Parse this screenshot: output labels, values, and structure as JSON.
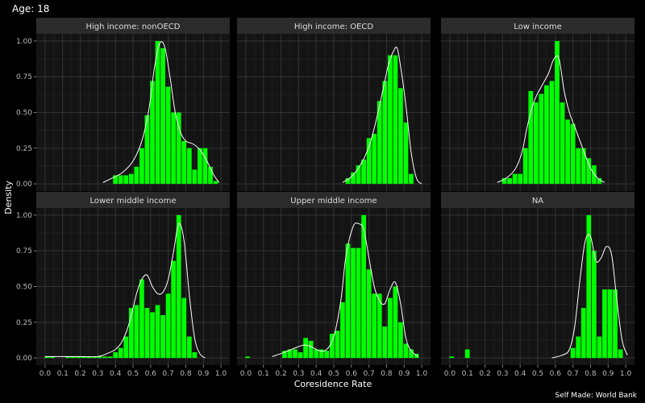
{
  "chart_data": {
    "type": "bar",
    "title": "Age: 18",
    "xlabel": "Coresidence Rate",
    "ylabel": "Density",
    "caption": "Self Made: World Bank",
    "xlim": [
      -0.05,
      1.05
    ],
    "ylim": [
      -0.05,
      1.05
    ],
    "x_ticks": [
      "0.0",
      "0.1",
      "0.2",
      "0.3",
      "0.4",
      "0.5",
      "0.6",
      "0.7",
      "0.8",
      "0.9",
      "1.0"
    ],
    "y_ticks": [
      "0.00",
      "0.25",
      "0.50",
      "0.75",
      "1.00"
    ],
    "bin_width": 0.03,
    "bar_color": "#00ff00",
    "density_color": "#ffffff",
    "panel_background": "#141414",
    "strip_background": "#2b2b2b",
    "facets": [
      {
        "label": "High income: nonOECD",
        "bars": [
          [
            0.4,
            0.06
          ],
          [
            0.43,
            0.06
          ],
          [
            0.46,
            0.06
          ],
          [
            0.49,
            0.07
          ],
          [
            0.52,
            0.12
          ],
          [
            0.55,
            0.25
          ],
          [
            0.58,
            0.48
          ],
          [
            0.61,
            0.72
          ],
          [
            0.64,
            1.0
          ],
          [
            0.67,
            0.95
          ],
          [
            0.7,
            0.68
          ],
          [
            0.73,
            0.5
          ],
          [
            0.76,
            0.5
          ],
          [
            0.79,
            0.3
          ],
          [
            0.82,
            0.25
          ],
          [
            0.85,
            0.1
          ],
          [
            0.88,
            0.25
          ],
          [
            0.91,
            0.25
          ],
          [
            0.94,
            0.12
          ],
          [
            0.97,
            0.02
          ]
        ],
        "density": [
          [
            0.33,
            0.01
          ],
          [
            0.38,
            0.04
          ],
          [
            0.44,
            0.08
          ],
          [
            0.5,
            0.16
          ],
          [
            0.55,
            0.3
          ],
          [
            0.59,
            0.52
          ],
          [
            0.62,
            0.8
          ],
          [
            0.65,
            0.98
          ],
          [
            0.68,
            0.96
          ],
          [
            0.71,
            0.75
          ],
          [
            0.74,
            0.5
          ],
          [
            0.77,
            0.36
          ],
          [
            0.8,
            0.3
          ],
          [
            0.84,
            0.28
          ],
          [
            0.88,
            0.24
          ],
          [
            0.92,
            0.16
          ],
          [
            0.96,
            0.06
          ],
          [
            0.99,
            0.01
          ]
        ]
      },
      {
        "label": "High income: OECD",
        "bars": [
          [
            0.58,
            0.04
          ],
          [
            0.61,
            0.08
          ],
          [
            0.64,
            0.13
          ],
          [
            0.67,
            0.17
          ],
          [
            0.7,
            0.32
          ],
          [
            0.73,
            0.35
          ],
          [
            0.76,
            0.58
          ],
          [
            0.79,
            0.72
          ],
          [
            0.82,
            0.9
          ],
          [
            0.85,
            0.9
          ],
          [
            0.88,
            0.67
          ],
          [
            0.91,
            0.43
          ],
          [
            0.94,
            0.07
          ]
        ],
        "density": [
          [
            0.55,
            0.01
          ],
          [
            0.6,
            0.05
          ],
          [
            0.65,
            0.13
          ],
          [
            0.7,
            0.26
          ],
          [
            0.74,
            0.44
          ],
          [
            0.78,
            0.66
          ],
          [
            0.81,
            0.83
          ],
          [
            0.84,
            0.93
          ],
          [
            0.86,
            0.95
          ],
          [
            0.88,
            0.82
          ],
          [
            0.91,
            0.55
          ],
          [
            0.94,
            0.22
          ],
          [
            0.97,
            0.04
          ],
          [
            1.0,
            0.0
          ]
        ]
      },
      {
        "label": "Low income",
        "bars": [
          [
            0.31,
            0.04
          ],
          [
            0.34,
            0.04
          ],
          [
            0.37,
            0.07
          ],
          [
            0.4,
            0.07
          ],
          [
            0.43,
            0.25
          ],
          [
            0.46,
            0.65
          ],
          [
            0.49,
            0.57
          ],
          [
            0.52,
            0.63
          ],
          [
            0.55,
            0.69
          ],
          [
            0.58,
            0.72
          ],
          [
            0.61,
            1.0
          ],
          [
            0.64,
            0.57
          ],
          [
            0.67,
            0.45
          ],
          [
            0.7,
            0.42
          ],
          [
            0.73,
            0.25
          ],
          [
            0.76,
            0.25
          ],
          [
            0.79,
            0.18
          ],
          [
            0.82,
            0.13
          ],
          [
            0.85,
            0.04
          ]
        ],
        "density": [
          [
            0.27,
            0.01
          ],
          [
            0.32,
            0.04
          ],
          [
            0.37,
            0.1
          ],
          [
            0.41,
            0.22
          ],
          [
            0.44,
            0.4
          ],
          [
            0.48,
            0.58
          ],
          [
            0.52,
            0.68
          ],
          [
            0.56,
            0.77
          ],
          [
            0.59,
            0.87
          ],
          [
            0.62,
            0.88
          ],
          [
            0.65,
            0.65
          ],
          [
            0.68,
            0.5
          ],
          [
            0.71,
            0.4
          ],
          [
            0.74,
            0.3
          ],
          [
            0.77,
            0.2
          ],
          [
            0.8,
            0.11
          ],
          [
            0.84,
            0.04
          ],
          [
            0.88,
            0.01
          ]
        ]
      },
      {
        "label": "Lower middle income",
        "bars": [
          [
            0.01,
            0.01
          ],
          [
            0.04,
            0.01
          ],
          [
            0.13,
            0.01
          ],
          [
            0.16,
            0.01
          ],
          [
            0.19,
            0.01
          ],
          [
            0.22,
            0.01
          ],
          [
            0.25,
            0.01
          ],
          [
            0.28,
            0.01
          ],
          [
            0.31,
            0.01
          ],
          [
            0.34,
            0.01
          ],
          [
            0.37,
            0.01
          ],
          [
            0.4,
            0.04
          ],
          [
            0.43,
            0.07
          ],
          [
            0.46,
            0.15
          ],
          [
            0.49,
            0.35
          ],
          [
            0.52,
            0.37
          ],
          [
            0.55,
            0.55
          ],
          [
            0.58,
            0.35
          ],
          [
            0.61,
            0.32
          ],
          [
            0.64,
            0.37
          ],
          [
            0.67,
            0.3
          ],
          [
            0.7,
            0.45
          ],
          [
            0.73,
            0.68
          ],
          [
            0.76,
            1.0
          ],
          [
            0.79,
            0.42
          ],
          [
            0.82,
            0.15
          ],
          [
            0.85,
            0.04
          ]
        ],
        "density": [
          [
            0.0,
            0.01
          ],
          [
            0.1,
            0.01
          ],
          [
            0.2,
            0.01
          ],
          [
            0.3,
            0.01
          ],
          [
            0.35,
            0.03
          ],
          [
            0.4,
            0.06
          ],
          [
            0.44,
            0.12
          ],
          [
            0.48,
            0.25
          ],
          [
            0.52,
            0.45
          ],
          [
            0.55,
            0.55
          ],
          [
            0.58,
            0.58
          ],
          [
            0.61,
            0.5
          ],
          [
            0.64,
            0.45
          ],
          [
            0.67,
            0.46
          ],
          [
            0.7,
            0.55
          ],
          [
            0.73,
            0.74
          ],
          [
            0.76,
            0.94
          ],
          [
            0.79,
            0.82
          ],
          [
            0.82,
            0.44
          ],
          [
            0.85,
            0.14
          ],
          [
            0.88,
            0.03
          ],
          [
            0.91,
            0.0
          ]
        ]
      },
      {
        "label": "Upper middle income",
        "bars": [
          [
            0.01,
            0.01
          ],
          [
            0.22,
            0.05
          ],
          [
            0.25,
            0.06
          ],
          [
            0.28,
            0.06
          ],
          [
            0.31,
            0.04
          ],
          [
            0.34,
            0.14
          ],
          [
            0.37,
            0.12
          ],
          [
            0.4,
            0.06
          ],
          [
            0.43,
            0.06
          ],
          [
            0.46,
            0.05
          ],
          [
            0.49,
            0.17
          ],
          [
            0.52,
            0.19
          ],
          [
            0.55,
            0.39
          ],
          [
            0.58,
            0.8
          ],
          [
            0.61,
            0.77
          ],
          [
            0.64,
            0.77
          ],
          [
            0.67,
            1.0
          ],
          [
            0.7,
            0.62
          ],
          [
            0.73,
            0.45
          ],
          [
            0.76,
            0.45
          ],
          [
            0.79,
            0.22
          ],
          [
            0.82,
            0.42
          ],
          [
            0.85,
            0.5
          ],
          [
            0.88,
            0.25
          ],
          [
            0.91,
            0.1
          ],
          [
            0.94,
            0.06
          ],
          [
            0.97,
            0.03
          ]
        ],
        "density": [
          [
            0.15,
            0.01
          ],
          [
            0.22,
            0.04
          ],
          [
            0.28,
            0.07
          ],
          [
            0.33,
            0.09
          ],
          [
            0.37,
            0.08
          ],
          [
            0.42,
            0.05
          ],
          [
            0.46,
            0.06
          ],
          [
            0.5,
            0.15
          ],
          [
            0.54,
            0.4
          ],
          [
            0.57,
            0.72
          ],
          [
            0.61,
            0.92
          ],
          [
            0.64,
            0.94
          ],
          [
            0.67,
            0.9
          ],
          [
            0.7,
            0.7
          ],
          [
            0.73,
            0.5
          ],
          [
            0.76,
            0.4
          ],
          [
            0.79,
            0.38
          ],
          [
            0.82,
            0.48
          ],
          [
            0.85,
            0.53
          ],
          [
            0.88,
            0.38
          ],
          [
            0.91,
            0.14
          ],
          [
            0.94,
            0.05
          ],
          [
            0.98,
            0.01
          ]
        ]
      },
      {
        "label": "NA",
        "bars": [
          [
            0.01,
            0.01
          ],
          [
            0.1,
            0.06
          ],
          [
            0.7,
            0.07
          ],
          [
            0.73,
            0.15
          ],
          [
            0.76,
            0.35
          ],
          [
            0.79,
            1.0
          ],
          [
            0.82,
            0.75
          ],
          [
            0.85,
            0.15
          ],
          [
            0.88,
            0.48
          ],
          [
            0.91,
            0.48
          ],
          [
            0.94,
            0.48
          ],
          [
            0.97,
            0.06
          ]
        ],
        "density": [
          [
            0.58,
            0.0
          ],
          [
            0.64,
            0.02
          ],
          [
            0.68,
            0.06
          ],
          [
            0.71,
            0.22
          ],
          [
            0.74,
            0.55
          ],
          [
            0.77,
            0.82
          ],
          [
            0.8,
            0.85
          ],
          [
            0.83,
            0.68
          ],
          [
            0.86,
            0.7
          ],
          [
            0.89,
            0.78
          ],
          [
            0.92,
            0.72
          ],
          [
            0.95,
            0.4
          ],
          [
            0.98,
            0.12
          ],
          [
            1.01,
            0.02
          ]
        ]
      }
    ]
  }
}
